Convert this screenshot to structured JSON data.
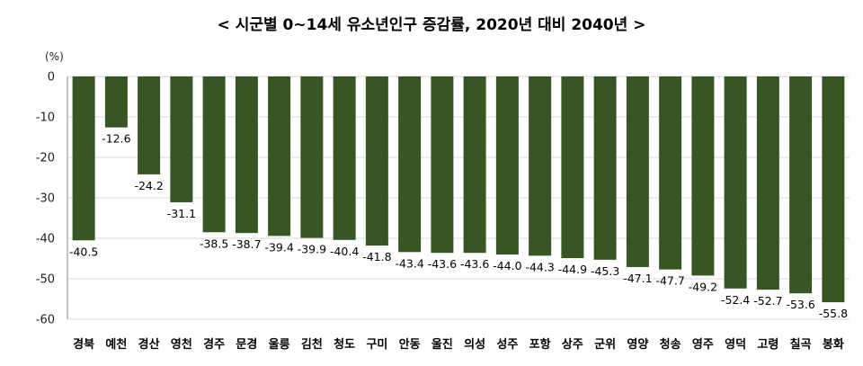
{
  "chart_data": {
    "type": "bar",
    "title": "< 시군별 0~14세 유소년인구 증감률, 2020년 대비 2040년 >",
    "unit_label": "(%)",
    "xlabel": "",
    "ylabel": "",
    "ylim": [
      -60,
      0
    ],
    "yticks": [
      0,
      -10,
      -20,
      -30,
      -40,
      -50,
      -60
    ],
    "grid": true,
    "legend": "none",
    "bar_color": "#375623",
    "categories": [
      "경북",
      "예천",
      "경산",
      "영천",
      "경주",
      "문경",
      "울릉",
      "김천",
      "청도",
      "구미",
      "안동",
      "울진",
      "의성",
      "성주",
      "포항",
      "상주",
      "군위",
      "영양",
      "청송",
      "영주",
      "영덕",
      "고령",
      "칠곡",
      "봉화"
    ],
    "values": [
      -40.5,
      -12.6,
      -24.2,
      -31.1,
      -38.5,
      -38.7,
      -39.4,
      -39.9,
      -40.4,
      -41.8,
      -43.4,
      -43.6,
      -43.6,
      -44.0,
      -44.3,
      -44.9,
      -45.3,
      -47.1,
      -47.7,
      -49.2,
      -52.4,
      -52.7,
      -53.6,
      -55.8
    ],
    "data_labels": [
      "-40.5",
      "-12.6",
      "-24.2",
      "-31.1",
      "-38.5",
      "-38.7",
      "-39.4",
      "-39.9",
      "-40.4",
      "-41.8",
      "-43.4",
      "-43.6",
      "-43.6",
      "-44.0",
      "-44.3",
      "-44.9",
      "-45.3",
      "-47.1",
      "-47.7",
      "-49.2",
      "-52.4",
      "-52.7",
      "-53.6",
      "-55.8"
    ]
  }
}
